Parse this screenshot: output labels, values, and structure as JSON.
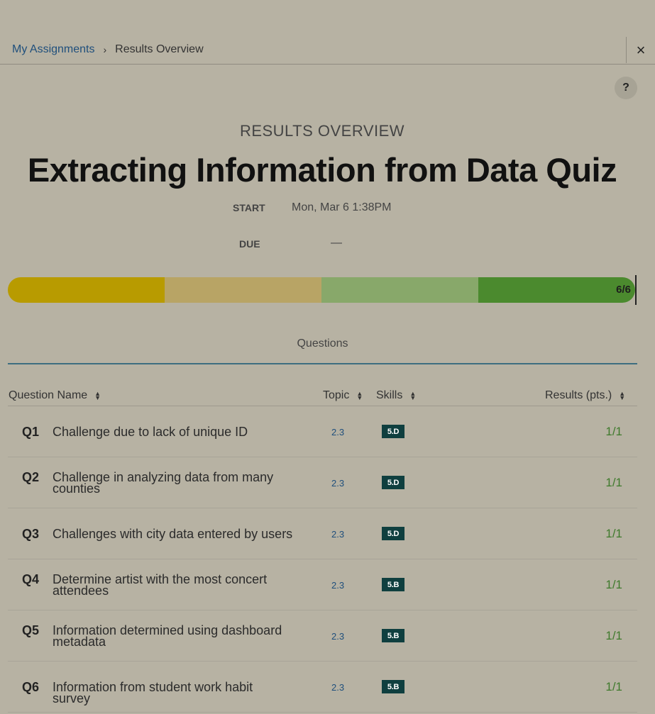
{
  "breadcrumb": {
    "link": "My Assignments",
    "separator": "›",
    "current": "Results Overview"
  },
  "icons": {
    "close": "×",
    "help": "?"
  },
  "header": {
    "eyebrow": "RESULTS OVERVIEW",
    "title": "Extracting Information from Data Quiz"
  },
  "meta": {
    "start_label": "START",
    "start_value": "Mon, Mar 6 1:38PM",
    "due_label": "DUE",
    "due_value": "—"
  },
  "progress": {
    "label": "6/6",
    "completed": 6,
    "total": 6,
    "segment_colors": [
      "#b89b00",
      "#b8a465",
      "#88a86a",
      "#4b8a2e"
    ]
  },
  "tabs": [
    {
      "label": "Questions"
    }
  ],
  "table": {
    "columns": {
      "question_name": "Question Name",
      "topic": "Topic",
      "skills": "Skills",
      "results": "Results (pts.)"
    },
    "rows": [
      {
        "num": "Q1",
        "name": "Challenge due to lack of unique ID",
        "topic": "2.3",
        "skill": "5.D",
        "result": "1/1"
      },
      {
        "num": "Q2",
        "name": "Challenge in analyzing data from many counties",
        "topic": "2.3",
        "skill": "5.D",
        "result": "1/1"
      },
      {
        "num": "Q3",
        "name": "Challenges with city data entered by users",
        "topic": "2.3",
        "skill": "5.D",
        "result": "1/1"
      },
      {
        "num": "Q4",
        "name": "Determine artist with the most concert attendees",
        "topic": "2.3",
        "skill": "5.B",
        "result": "1/1"
      },
      {
        "num": "Q5",
        "name": "Information determined using dashboard metadata",
        "topic": "2.3",
        "skill": "5.B",
        "result": "1/1"
      },
      {
        "num": "Q6",
        "name": "Information from student work habit survey",
        "topic": "2.3",
        "skill": "5.B",
        "result": "1/1"
      }
    ]
  }
}
